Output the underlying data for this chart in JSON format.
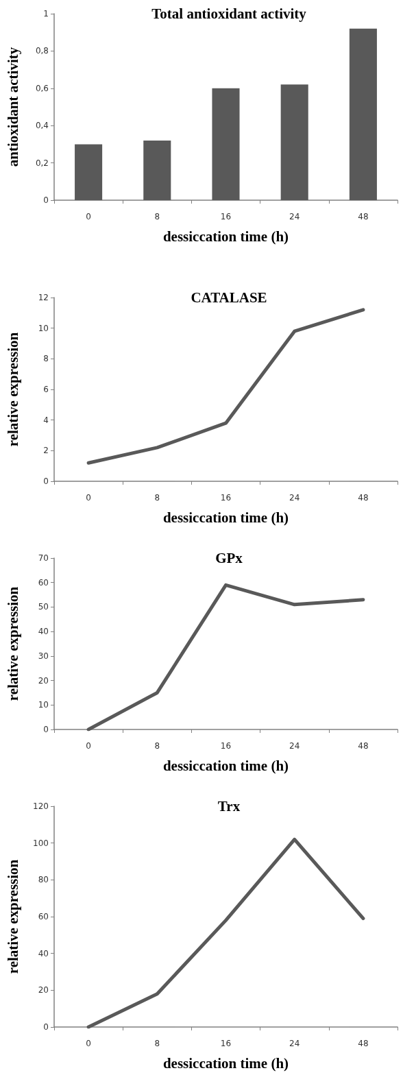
{
  "chart_data": [
    {
      "type": "bar",
      "title": "Total antioxidant activity",
      "xlabel": "dessiccation time (h)",
      "ylabel": "antioxidant activity",
      "categories": [
        "0",
        "8",
        "16",
        "24",
        "48"
      ],
      "values": [
        0.3,
        0.32,
        0.6,
        0.62,
        0.92
      ],
      "color": "#595959",
      "ylim": [
        0,
        1
      ],
      "yticks": [
        0,
        {
          "value": 0.2,
          "label": "0,2"
        },
        {
          "value": 0.4,
          "label": "0,4"
        },
        {
          "value": 0.6,
          "label": "0,6"
        },
        {
          "value": 0.8,
          "label": "0,8"
        },
        1
      ]
    },
    {
      "type": "line",
      "title": "CATALASE",
      "xlabel": "dessiccation time (h)",
      "ylabel": "relative expression",
      "categories": [
        "0",
        "8",
        "16",
        "24",
        "48"
      ],
      "values": [
        1.2,
        2.2,
        3.8,
        9.8,
        11.2
      ],
      "color": "#595959",
      "ylim": [
        0,
        12
      ],
      "yticks": [
        0,
        2,
        4,
        6,
        8,
        10,
        12
      ],
      "marker": "none",
      "line_style": "solid"
    },
    {
      "type": "line",
      "title": "GPx",
      "xlabel": "dessiccation time (h)",
      "ylabel": "relative expression",
      "categories": [
        "0",
        "8",
        "16",
        "24",
        "48"
      ],
      "values": [
        0,
        15,
        59,
        51,
        53
      ],
      "color": "#595959",
      "ylim": [
        0,
        70
      ],
      "yticks": [
        0,
        10,
        20,
        30,
        40,
        50,
        60,
        70
      ],
      "marker": "none",
      "line_style": "solid"
    },
    {
      "type": "line",
      "title": "Trx",
      "xlabel": "dessiccation time (h)",
      "ylabel": "relative expression",
      "categories": [
        "0",
        "8",
        "16",
        "24",
        "48"
      ],
      "values": [
        0,
        18,
        58,
        102,
        59
      ],
      "color": "#595959",
      "ylim": [
        0,
        120
      ],
      "yticks": [
        0,
        20,
        40,
        60,
        80,
        100,
        120
      ],
      "marker": "none",
      "line_style": "solid"
    }
  ]
}
